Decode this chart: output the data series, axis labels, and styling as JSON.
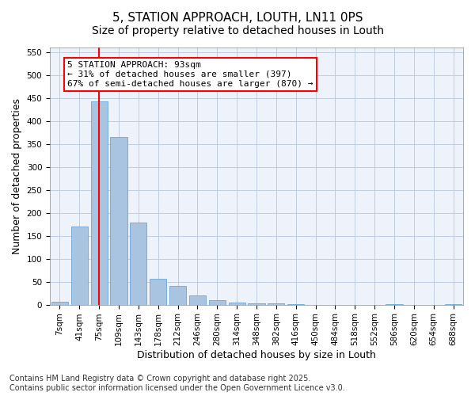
{
  "title": "5, STATION APPROACH, LOUTH, LN11 0PS",
  "subtitle": "Size of property relative to detached houses in Louth",
  "xlabel": "Distribution of detached houses by size in Louth",
  "ylabel": "Number of detached properties",
  "bar_color": "#a8c4e0",
  "bar_edgecolor": "#5b9bd5",
  "background_color": "#eef2fa",
  "grid_color": "#c0cce0",
  "categories": [
    "7sqm",
    "41sqm",
    "75sqm",
    "109sqm",
    "143sqm",
    "178sqm",
    "212sqm",
    "246sqm",
    "280sqm",
    "314sqm",
    "348sqm",
    "382sqm",
    "416sqm",
    "450sqm",
    "484sqm",
    "518sqm",
    "552sqm",
    "586sqm",
    "620sqm",
    "654sqm",
    "688sqm"
  ],
  "values": [
    7,
    170,
    443,
    365,
    178,
    56,
    40,
    20,
    10,
    5,
    2,
    2,
    1,
    0,
    0,
    0,
    0,
    1,
    0,
    0,
    1
  ],
  "ylim": [
    0,
    560
  ],
  "yticks": [
    0,
    50,
    100,
    150,
    200,
    250,
    300,
    350,
    400,
    450,
    500,
    550
  ],
  "red_line_x": 2,
  "annotation_text": "5 STATION APPROACH: 93sqm\n← 31% of detached houses are smaller (397)\n67% of semi-detached houses are larger (870) →",
  "footnote": "Contains HM Land Registry data © Crown copyright and database right 2025.\nContains public sector information licensed under the Open Government Licence v3.0.",
  "title_fontsize": 11,
  "subtitle_fontsize": 10,
  "axis_fontsize": 9,
  "tick_fontsize": 7.5,
  "footnote_fontsize": 7
}
